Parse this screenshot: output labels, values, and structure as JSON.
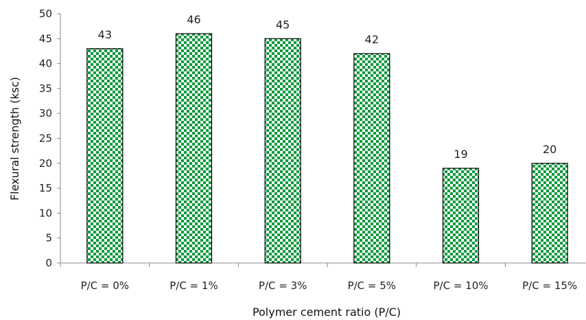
{
  "chart_data": {
    "type": "bar",
    "title": "",
    "xlabel": "Polymer cement ratio (P/C)",
    "ylabel": "Flexural strength  (ksc)",
    "categories": [
      "P/C = 0%",
      "P/C = 1%",
      "P/C = 3%",
      "P/C = 5%",
      "P/C = 10%",
      "P/C = 15%"
    ],
    "values": [
      43,
      46,
      45,
      42,
      19,
      20
    ],
    "data_labels": [
      "43",
      "46",
      "45",
      "42",
      "19",
      "20"
    ],
    "ylim": [
      0,
      50
    ],
    "yticks": [
      "0",
      "5",
      "10",
      "15",
      "20",
      "25",
      "30",
      "35",
      "40",
      "45",
      "50"
    ],
    "grid": false,
    "legend": "none",
    "colors": {
      "bar_pattern_primary": "#0a9a3c",
      "bar_pattern_secondary": "#ffffff",
      "bar_outline": "#000000",
      "axis": "#888888"
    }
  }
}
